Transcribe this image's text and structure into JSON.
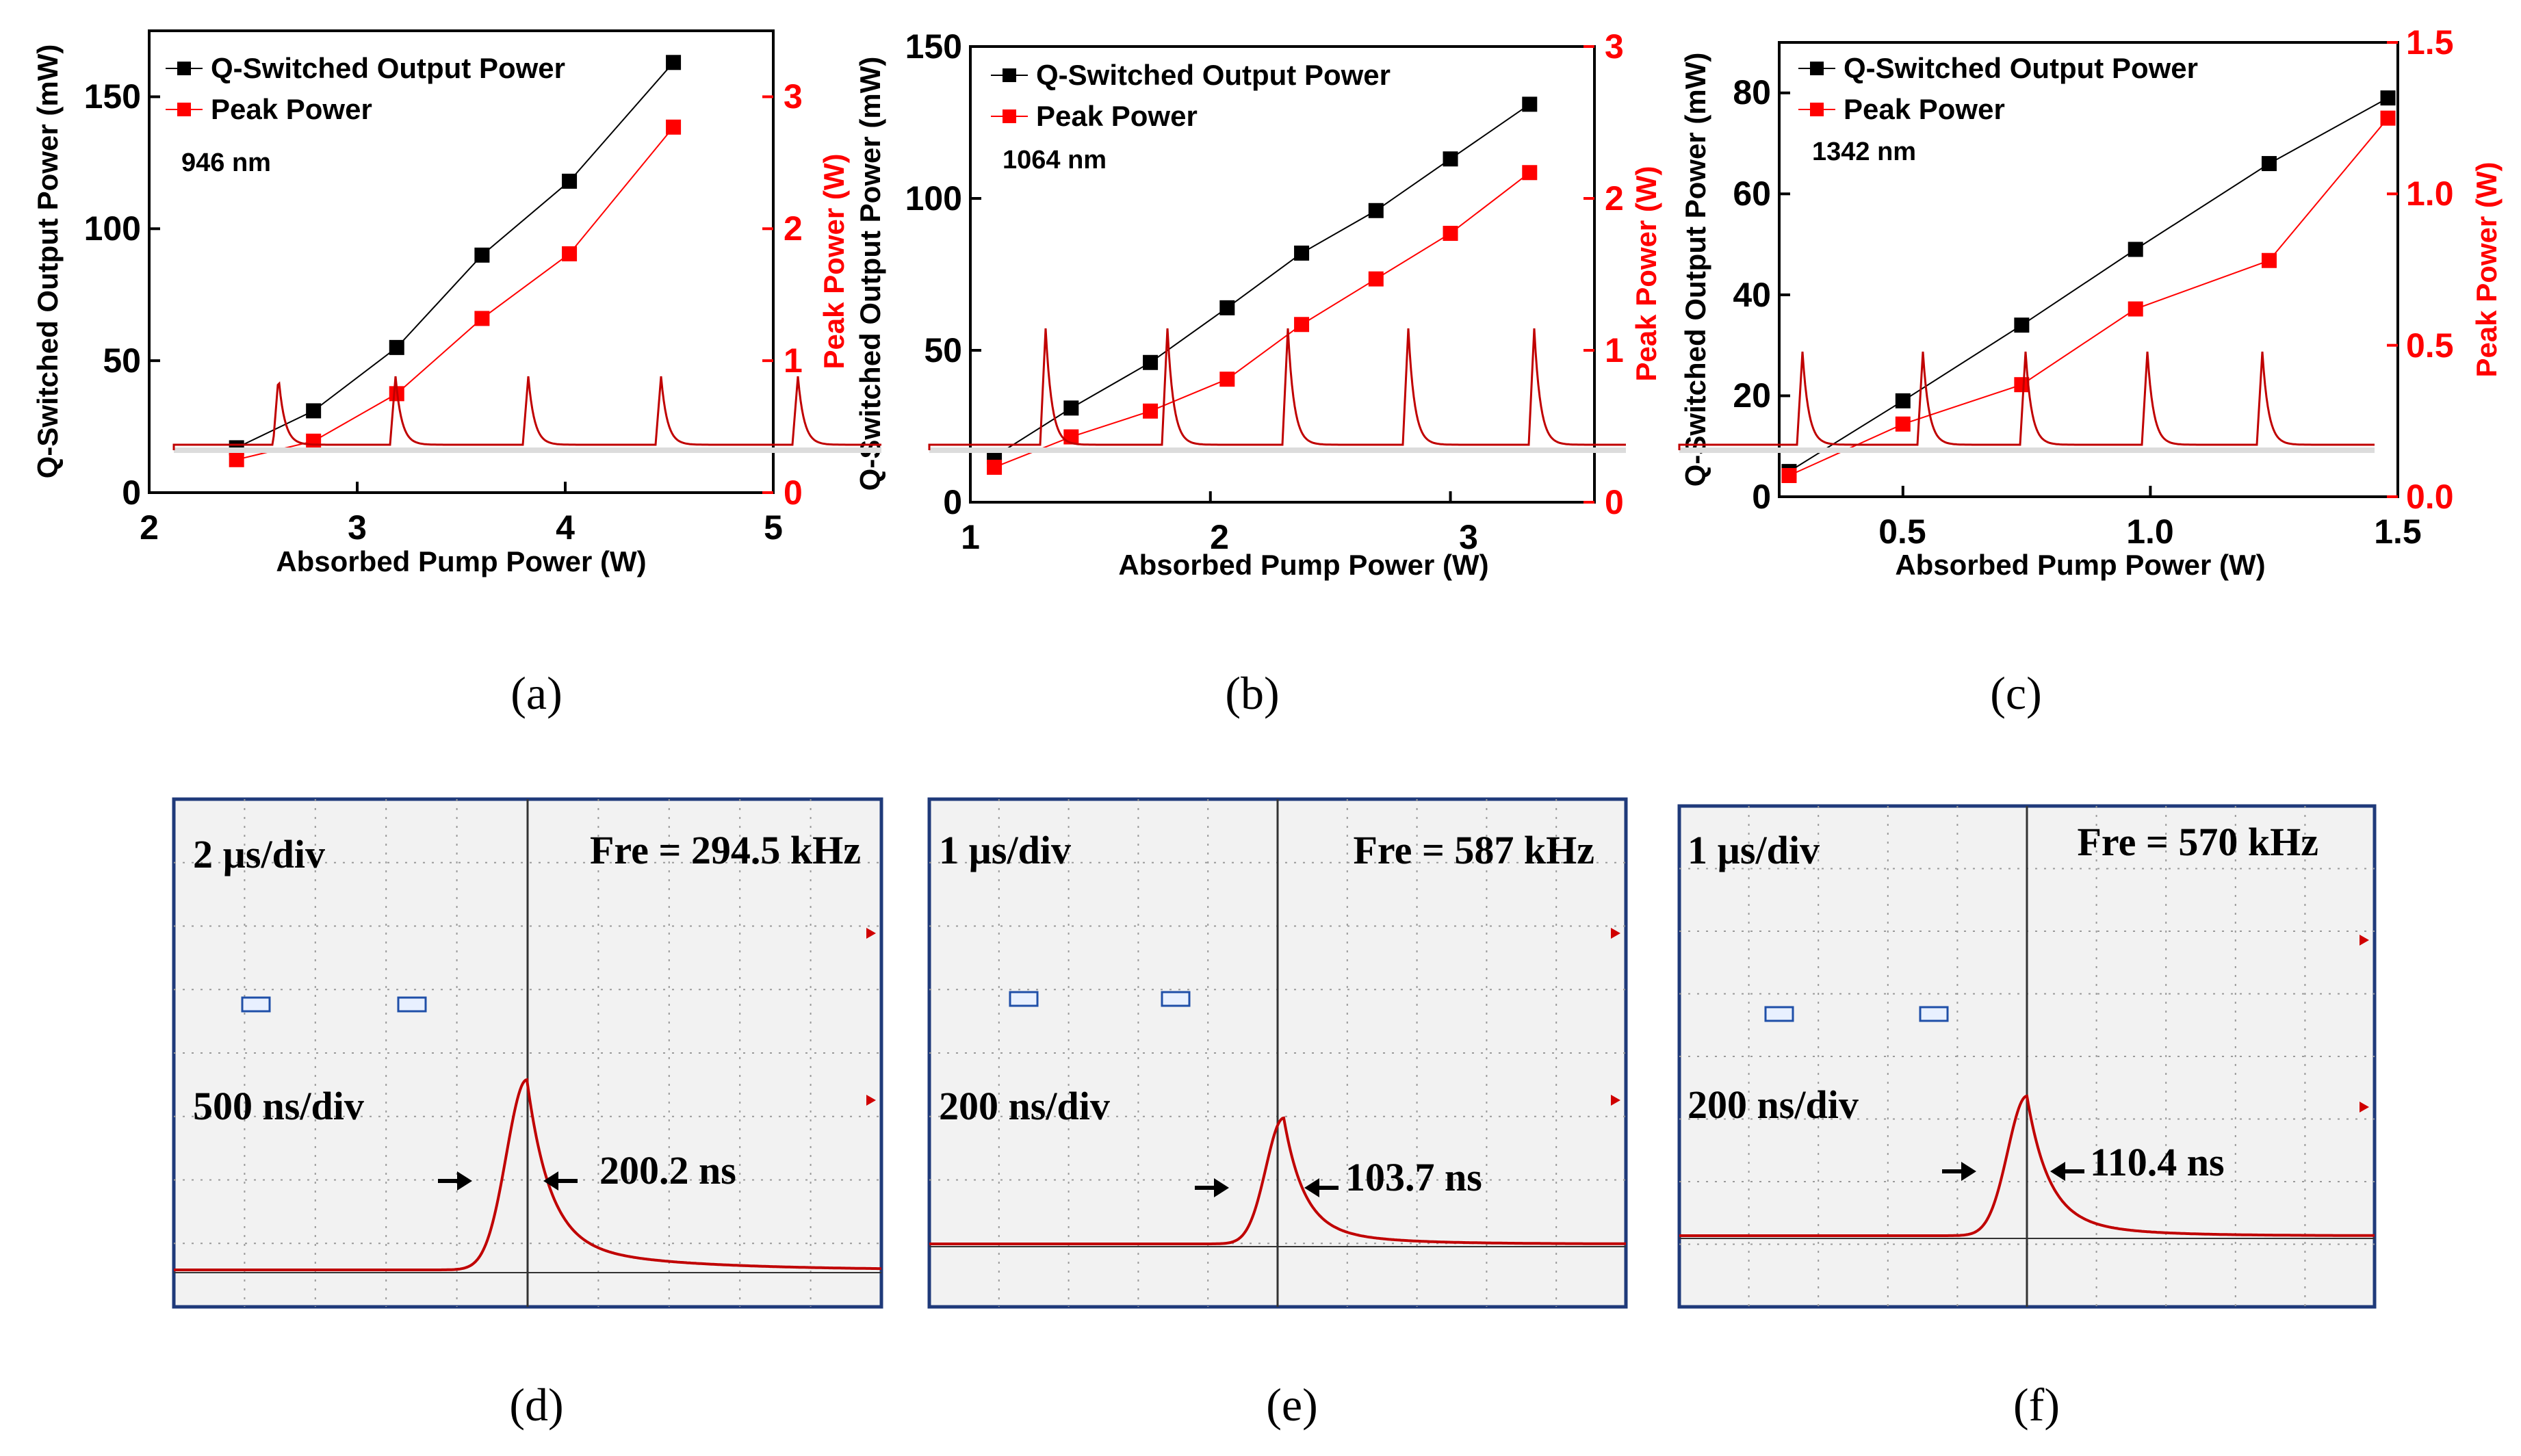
{
  "colors": {
    "black_series": "#000000",
    "red_series": "#ff0000",
    "scope_trace": "#c00000",
    "scope_bg": "#f2f2f2",
    "scope_frame": "#1f3a7a",
    "scope_grid": "#9a9a9a"
  },
  "chart_data": [
    {
      "type": "line",
      "panel": "(a)",
      "wavelength_label": "946 nm",
      "xlabel": "Absorbed Pump Power (W)",
      "ylabel_left": "Q-Switched Output Power (mW)",
      "ylabel_right": "Peak Power (W)",
      "xlim": [
        2,
        5
      ],
      "ylim_left": [
        0,
        175
      ],
      "ylim_right": [
        0,
        3.5
      ],
      "xticks": [
        "2",
        "3",
        "4",
        "5"
      ],
      "yticks_left": [
        "0",
        "50",
        "100",
        "150"
      ],
      "yticks_right": [
        "0",
        "1",
        "2",
        "3"
      ],
      "legend": [
        "Q-Switched Output Power",
        "Peak Power"
      ],
      "x": [
        2.42,
        2.79,
        3.19,
        3.6,
        4.02,
        4.52
      ],
      "series": [
        {
          "name": "Q-Switched Output Power",
          "axis": "left",
          "values": [
            17,
            31,
            55,
            90,
            118,
            163
          ]
        },
        {
          "name": "Peak Power",
          "axis": "right",
          "values": [
            0.25,
            0.39,
            0.75,
            1.32,
            1.81,
            2.77
          ]
        }
      ]
    },
    {
      "type": "line",
      "panel": "(b)",
      "wavelength_label": "1064 nm",
      "xlabel": "Absorbed Pump Power (W)",
      "ylabel_left": "Q-Switched Output Power (mW)",
      "ylabel_right": "Peak Power (W)",
      "xlim": [
        1,
        3.6
      ],
      "ylim_left": [
        0,
        150
      ],
      "ylim_right": [
        0,
        3
      ],
      "xticks": [
        "1",
        "2",
        "3"
      ],
      "yticks_left": [
        "0",
        "50",
        "100",
        "150"
      ],
      "yticks_right": [
        "0",
        "1",
        "2",
        "3"
      ],
      "legend": [
        "Q-Switched Output Power",
        "Peak Power"
      ],
      "x": [
        1.1,
        1.42,
        1.75,
        2.07,
        2.38,
        2.69,
        3.0,
        3.33
      ],
      "series": [
        {
          "name": "Q-Switched Output Power",
          "axis": "left",
          "values": [
            15,
            31,
            46,
            64,
            82,
            96,
            113,
            131
          ]
        },
        {
          "name": "Peak Power",
          "axis": "right",
          "values": [
            0.23,
            0.43,
            0.6,
            0.81,
            1.17,
            1.47,
            1.77,
            2.17
          ]
        }
      ]
    },
    {
      "type": "line",
      "panel": "(c)",
      "wavelength_label": "1342 nm",
      "xlabel": "Absorbed Pump Power (W)",
      "ylabel_left": "Q-Switched Output Power (mW)",
      "ylabel_right": "Peak Power (W)",
      "xlim": [
        0.25,
        1.5
      ],
      "ylim_left": [
        0,
        90
      ],
      "ylim_right": [
        0,
        1.5
      ],
      "xticks": [
        "0.5",
        "1.0",
        "1.5"
      ],
      "yticks_left": [
        "0",
        "20",
        "40",
        "60",
        "80"
      ],
      "yticks_right": [
        "0.0",
        "0.5",
        "1.0",
        "1.5"
      ],
      "legend": [
        "Q-Switched Output Power",
        "Peak Power"
      ],
      "x": [
        0.27,
        0.5,
        0.74,
        0.97,
        1.24,
        1.48
      ],
      "series": [
        {
          "name": "Q-Switched Output Power",
          "axis": "left",
          "values": [
            5,
            19,
            34,
            49,
            66,
            79
          ]
        },
        {
          "name": "Peak Power",
          "axis": "right",
          "values": [
            0.07,
            0.24,
            0.37,
            0.62,
            0.78,
            1.25
          ]
        }
      ]
    }
  ],
  "scopes": [
    {
      "panel": "(d)",
      "top_timebase": "2 µs/div",
      "frequency": "Fre = 294.5 kHz",
      "bottom_timebase": "500 ns/div",
      "pulse_width": "200.2 ns"
    },
    {
      "panel": "(e)",
      "top_timebase": "1 µs/div",
      "frequency": "Fre = 587 kHz",
      "bottom_timebase": "200 ns/div",
      "pulse_width": "103.7 ns"
    },
    {
      "panel": "(f)",
      "top_timebase": "1 µs/div",
      "frequency": "Fre = 570 kHz",
      "bottom_timebase": "200 ns/div",
      "pulse_width": "110.4 ns"
    }
  ]
}
